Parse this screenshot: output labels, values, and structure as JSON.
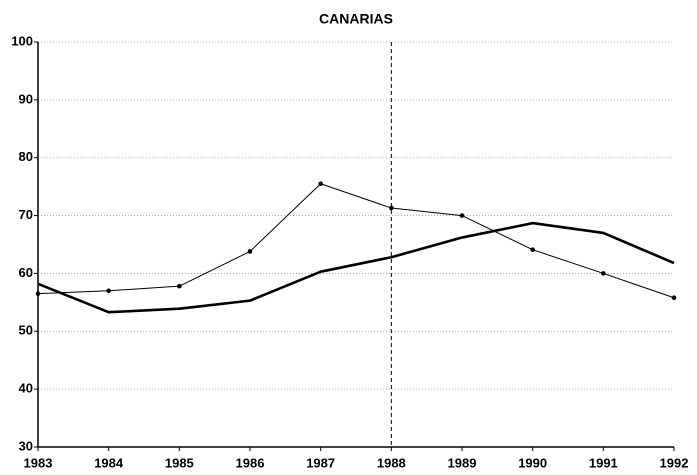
{
  "chart_data": {
    "type": "line",
    "title": "CANARIAS",
    "x": [
      1983,
      1984,
      1985,
      1986,
      1987,
      1988,
      1989,
      1990,
      1991,
      1992
    ],
    "series": [
      {
        "color": "#000000",
        "values": [
          56.5,
          57.0,
          57.8,
          63.8,
          75.5,
          71.3,
          70.0,
          64.1,
          60.0,
          55.8
        ],
        "markers": true,
        "width": 1
      },
      {
        "color": "#000000",
        "values": [
          58.2,
          53.3,
          53.9,
          55.3,
          60.3,
          62.8,
          66.2,
          68.7,
          67.0,
          61.8
        ],
        "markers": false,
        "width": 2.6
      }
    ],
    "xlim": [
      1983,
      1992
    ],
    "xticks": [
      1983,
      1984,
      1985,
      1986,
      1987,
      1988,
      1989,
      1990,
      1991,
      1992
    ],
    "ylim": [
      30,
      100
    ],
    "yticks": [
      30,
      40,
      50,
      60,
      70,
      80,
      90,
      100
    ],
    "grid": true,
    "vline": 1988
  }
}
